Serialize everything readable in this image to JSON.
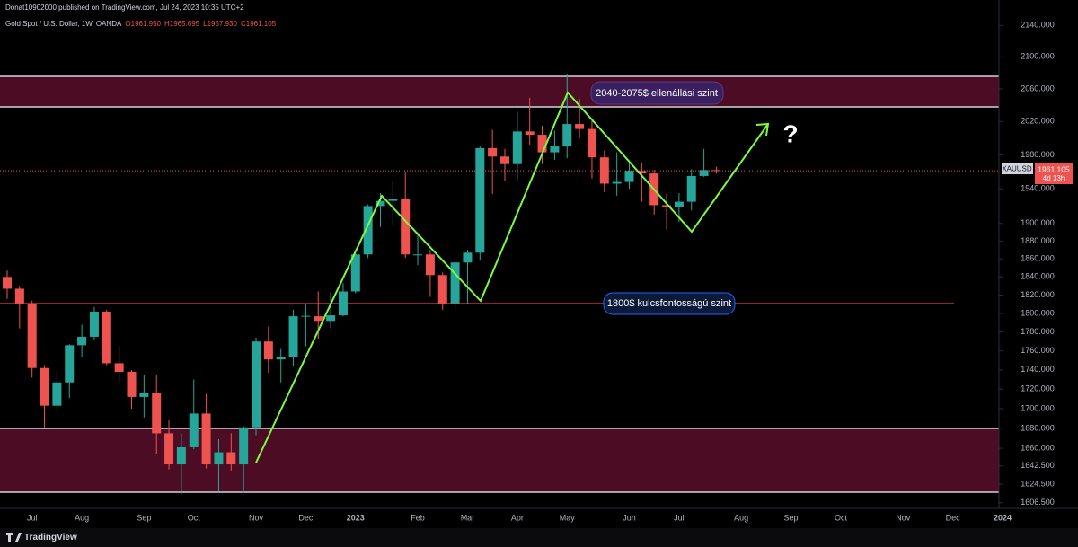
{
  "header": {
    "publisher": "Donat10902000 published on TradingView.com, Jul 24, 2023 10:35 UTC+2",
    "symbol": "Gold Spot / U.S. Dollar, 1W, OANDA",
    "ohlc": [
      "O1961.950",
      "H1965.695",
      "L1957.930",
      "C1961.105"
    ]
  },
  "price_tag": {
    "symbol": "XAUUSD",
    "price": "1961.105",
    "countdown": "4d 13h"
  },
  "footer": "TradingView",
  "annotations": {
    "resistance": "2040-2075$ ellenállási szint",
    "support": "1800$ kulcsfontosságú szint",
    "question": "?"
  },
  "chart_data": {
    "type": "candlestick",
    "log_scale": true,
    "grid": false,
    "up_color": "#26a69a",
    "down_color": "#ef5350",
    "categories": [
      null,
      null,
      "Jul",
      null,
      null,
      null,
      "Aug",
      null,
      null,
      null,
      null,
      "Sep",
      null,
      null,
      null,
      "Oct",
      null,
      null,
      null,
      null,
      "Nov",
      null,
      null,
      null,
      "Dec",
      null,
      null,
      null,
      "2023",
      null,
      null,
      null,
      null,
      "Feb",
      null,
      null,
      null,
      "Mar",
      null,
      null,
      null,
      "Apr",
      null,
      null,
      null,
      "May",
      null,
      null,
      null,
      null,
      "Jun",
      null,
      null,
      null,
      "Jul",
      null,
      null,
      null,
      null,
      "Aug",
      null,
      null,
      null,
      "Sep",
      null,
      null,
      null,
      "Oct",
      null,
      null,
      null,
      null,
      "Nov",
      null,
      null,
      null,
      "Dec",
      null,
      null,
      null,
      "2024",
      null,
      null,
      null,
      null
    ],
    "open": [
      1840,
      1827,
      1811,
      1742,
      1703,
      1727,
      1766,
      1775,
      1802,
      1747,
      1738,
      1712,
      1716,
      1675,
      1644,
      1661,
      1695,
      1644,
      1656,
      1644,
      1681,
      1770,
      1751,
      1754,
      1797,
      1797,
      1792,
      1798,
      1824,
      1865,
      1920,
      1926,
      1928,
      1865,
      1865,
      1842,
      1811,
      1856,
      1867,
      1988,
      1978,
      1969,
      2008,
      2004,
      1983,
      1990,
      2017,
      2011,
      1977,
      1946,
      1948,
      1961,
      1958,
      1921,
      1919,
      1925,
      1955,
      1961.95,
      null,
      null,
      null,
      null,
      null,
      null,
      null,
      null,
      null,
      null,
      null,
      null,
      null,
      null,
      null,
      null,
      null,
      null,
      null,
      null,
      null,
      null,
      null,
      null,
      null,
      null,
      null
    ],
    "high": [
      1847,
      1830,
      1814,
      1745,
      1739,
      1767,
      1788,
      1807,
      1804,
      1765,
      1740,
      1735,
      1735,
      1688,
      1675,
      1730,
      1715,
      1669,
      1675,
      1682,
      1774,
      1786,
      1762,
      1804,
      1810,
      1824,
      1823,
      1833,
      1870,
      1922,
      1935,
      1949,
      1960,
      1890,
      1870,
      1845,
      1858,
      1870,
      1990,
      2010,
      1987,
      2032,
      2049,
      2015,
      2009,
      2079,
      2048,
      2022,
      1985,
      1983,
      1971,
      1971,
      1962,
      1934,
      1935,
      1963,
      1987,
      1965.695,
      null,
      null,
      null,
      null,
      null,
      null,
      null,
      null,
      null,
      null,
      null,
      null,
      null,
      null,
      null,
      null,
      null,
      null,
      null,
      null,
      null,
      null,
      null,
      null,
      null,
      null,
      null
    ],
    "low": [
      1816,
      1784,
      1732,
      1681,
      1698,
      1711,
      1754,
      1771,
      1745,
      1727,
      1700,
      1691,
      1654,
      1639,
      1615,
      1659,
      1640,
      1617,
      1638,
      1616,
      1673,
      1737,
      1727,
      1744,
      1765,
      1773,
      1784,
      1797,
      1822,
      1861,
      1896,
      1899,
      1861,
      1853,
      1818,
      1804,
      1804,
      1810,
      1858,
      1934,
      1949,
      1950,
      1992,
      1969,
      1974,
      1976,
      2000,
      1952,
      1936,
      1932,
      1940,
      1925,
      1910,
      1893,
      1902,
      1915,
      1954,
      1957.93,
      null,
      null,
      null,
      null,
      null,
      null,
      null,
      null,
      null,
      null,
      null,
      null,
      null,
      null,
      null,
      null,
      null,
      null,
      null,
      null,
      null,
      null,
      null,
      null,
      null,
      null,
      null
    ],
    "close": [
      1827,
      1811,
      1742,
      1703,
      1727,
      1766,
      1775,
      1802,
      1747,
      1738,
      1712,
      1716,
      1675,
      1644,
      1661,
      1695,
      1644,
      1656,
      1644,
      1681,
      1770,
      1751,
      1754,
      1797,
      1797.5,
      1792,
      1798,
      1824,
      1865,
      1920,
      1926,
      1928,
      1865,
      1865,
      1842,
      1811,
      1856,
      1867,
      1988,
      1978,
      1969,
      2008,
      2004,
      1983,
      1990,
      2017,
      2011,
      1977,
      1946,
      1948,
      1961,
      1958,
      1921,
      1919,
      1925,
      1955,
      1962,
      1961.105,
      null,
      null,
      null,
      null,
      null,
      null,
      null,
      null,
      null,
      null,
      null,
      null,
      null,
      null,
      null,
      null,
      null,
      null,
      null,
      null,
      null,
      null,
      null,
      null,
      null,
      null,
      null
    ],
    "ylim": [
      1602,
      2173
    ],
    "yticks": [
      {
        "value": 2140,
        "label": "2140.000"
      },
      {
        "value": 2100,
        "label": "2100.000"
      },
      {
        "value": 2060,
        "label": "2060.000"
      },
      {
        "value": 2020,
        "label": "2020.000"
      },
      {
        "value": 1980,
        "label": "1980.000"
      },
      {
        "value": 1940,
        "label": "1940.000"
      },
      {
        "value": 1900,
        "label": "1900.000"
      },
      {
        "value": 1880,
        "label": "1880.000"
      },
      {
        "value": 1860,
        "label": "1860.000"
      },
      {
        "value": 1840,
        "label": "1840.000"
      },
      {
        "value": 1820,
        "label": "1820.000"
      },
      {
        "value": 1800,
        "label": "1800.000"
      },
      {
        "value": 1780,
        "label": "1780.000"
      },
      {
        "value": 1760,
        "label": "1760.000"
      },
      {
        "value": 1740,
        "label": "1740.000"
      },
      {
        "value": 1720,
        "label": "1720.000"
      },
      {
        "value": 1700,
        "label": "1700.000"
      },
      {
        "value": 1680,
        "label": "1680.000"
      },
      {
        "value": 1660,
        "label": "1660.000"
      },
      {
        "value": 1642.5,
        "label": "1642.500"
      },
      {
        "value": 1624.5,
        "label": "1624.500"
      },
      {
        "value": 1606.5,
        "label": "1606.500"
      }
    ]
  }
}
